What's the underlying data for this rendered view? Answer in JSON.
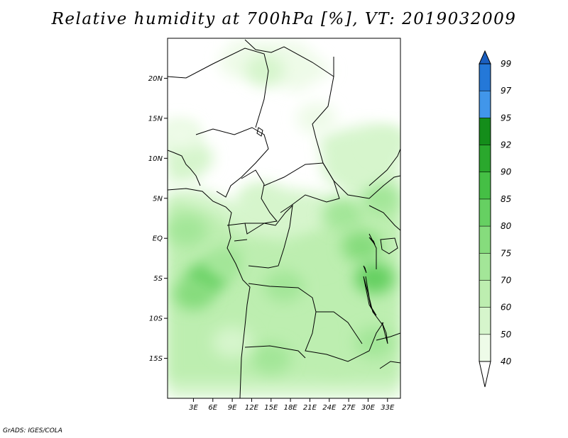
{
  "title": "Relative humidity at 700hPa [%], VT: 2019032009",
  "credit": "GrADS: IGES/COLA",
  "map": {
    "lon_range": [
      -1,
      35
    ],
    "lat_range": [
      -20,
      25
    ],
    "lat_ticks": [
      {
        "value": 20,
        "label": "20N"
      },
      {
        "value": 15,
        "label": "15N"
      },
      {
        "value": 10,
        "label": "10N"
      },
      {
        "value": 5,
        "label": "5N"
      },
      {
        "value": 0,
        "label": "EQ"
      },
      {
        "value": -5,
        "label": "5S"
      },
      {
        "value": -10,
        "label": "10S"
      },
      {
        "value": -15,
        "label": "15S"
      }
    ],
    "lon_ticks": [
      {
        "value": 3,
        "label": "3E"
      },
      {
        "value": 6,
        "label": "6E"
      },
      {
        "value": 9,
        "label": "9E"
      },
      {
        "value": 12,
        "label": "12E"
      },
      {
        "value": 15,
        "label": "15E"
      },
      {
        "value": 18,
        "label": "18E"
      },
      {
        "value": 21,
        "label": "21E"
      },
      {
        "value": 24,
        "label": "24E"
      },
      {
        "value": 27,
        "label": "27E"
      },
      {
        "value": 30,
        "label": "30E"
      },
      {
        "value": 33,
        "label": "33E"
      }
    ]
  },
  "colorbar": {
    "levels": [
      {
        "label": "40",
        "color": "#ffffff"
      },
      {
        "label": "50",
        "color": "#eefbe8"
      },
      {
        "label": "60",
        "color": "#d6f5cc"
      },
      {
        "label": "70",
        "color": "#bdeeb0"
      },
      {
        "label": "75",
        "color": "#a3e698"
      },
      {
        "label": "80",
        "color": "#86dc7d"
      },
      {
        "label": "85",
        "color": "#66d062"
      },
      {
        "label": "90",
        "color": "#45bf45"
      },
      {
        "label": "92",
        "color": "#2aa82d"
      },
      {
        "label": "95",
        "color": "#148d1a"
      },
      {
        "label": "97",
        "color": "#4196ea"
      },
      {
        "label": "99",
        "color": "#2478d8"
      }
    ],
    "over_color": "#1a5fc0",
    "under_color": "#ffffff"
  },
  "humidity_fields": [
    {
      "lon": 2,
      "lat": 1,
      "level": "75"
    },
    {
      "lon": 5,
      "lat": -5,
      "level": "85"
    },
    {
      "lon": 3,
      "lat": -7,
      "level": "80"
    },
    {
      "lon": 8,
      "lat": -3,
      "level": "75"
    },
    {
      "lon": 14,
      "lat": -3,
      "level": "70"
    },
    {
      "lon": 17,
      "lat": -6,
      "level": "75"
    },
    {
      "lon": 22,
      "lat": -2,
      "level": "70"
    },
    {
      "lon": 26,
      "lat": 3,
      "level": "75"
    },
    {
      "lon": 29,
      "lat": -1,
      "level": "80"
    },
    {
      "lon": 31,
      "lat": -5,
      "level": "85"
    },
    {
      "lon": 32,
      "lat": 5,
      "level": "75"
    },
    {
      "lon": 29,
      "lat": 9,
      "level": "60"
    },
    {
      "lon": 20,
      "lat": -12,
      "level": "70"
    },
    {
      "lon": 15,
      "lat": -15,
      "level": "75"
    },
    {
      "lon": 25,
      "lat": -15,
      "level": "70"
    },
    {
      "lon": 9,
      "lat": -13,
      "level": "60"
    },
    {
      "lon": 31,
      "lat": -13,
      "level": "75"
    },
    {
      "lon": 13,
      "lat": 5,
      "level": "60"
    },
    {
      "lon": 3,
      "lat": 10,
      "level": "60"
    },
    {
      "lon": 1,
      "lat": 13,
      "level": "50"
    },
    {
      "lon": 10,
      "lat": 22,
      "level": "50"
    },
    {
      "lon": 14,
      "lat": 21,
      "level": "60"
    },
    {
      "lon": 22,
      "lat": 15,
      "level": "50"
    },
    {
      "lon": 33,
      "lat": 12,
      "level": "60"
    }
  ]
}
